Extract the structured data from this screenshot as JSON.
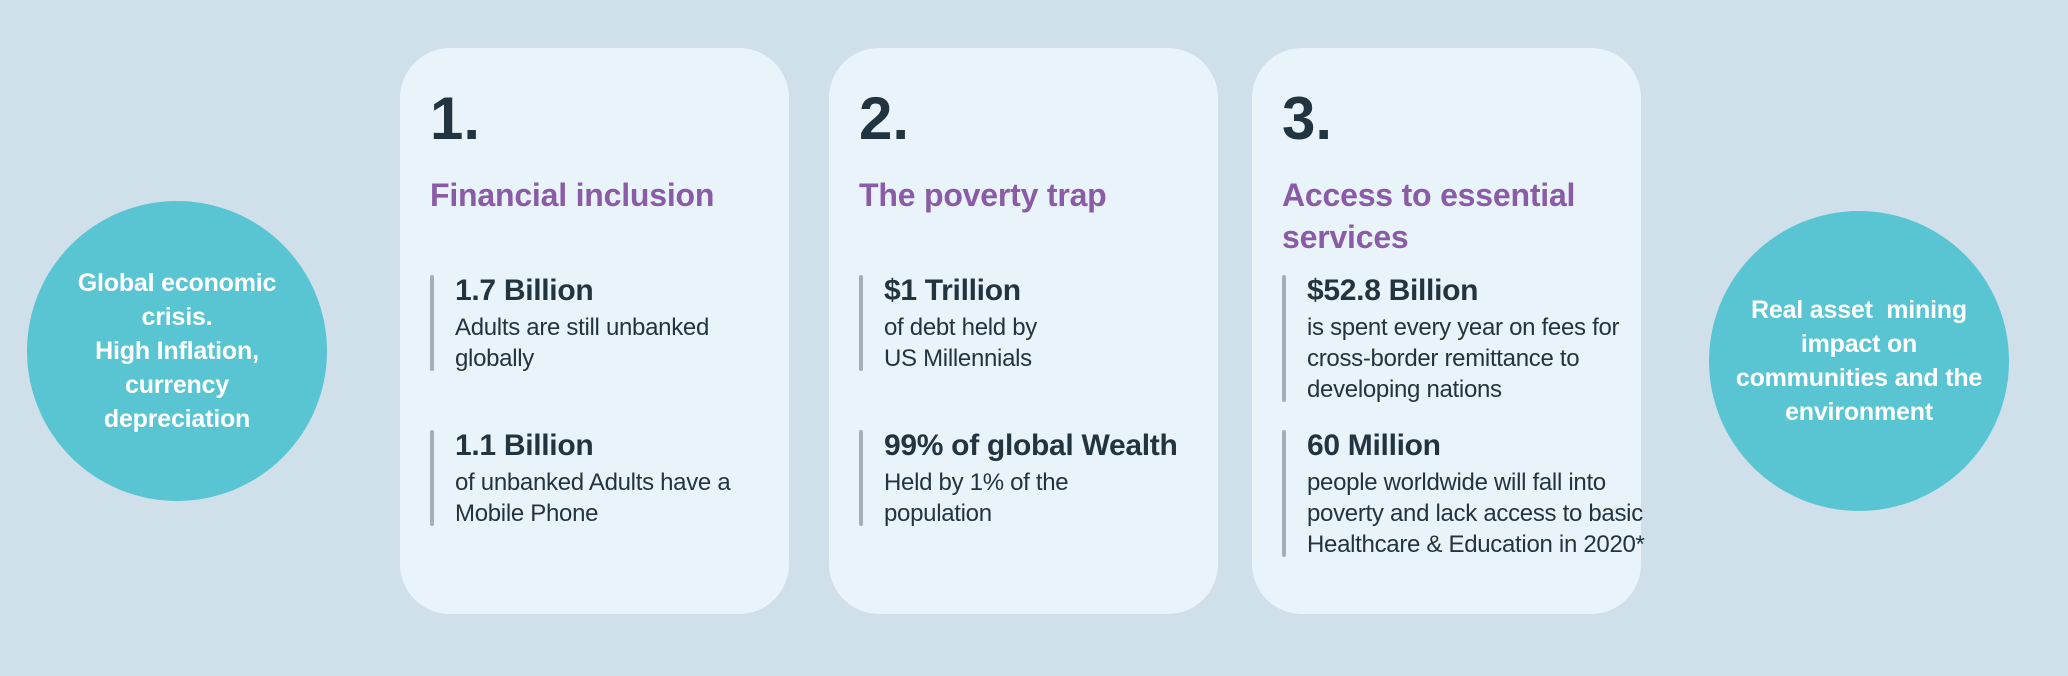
{
  "colors": {
    "background": "#cfe0eb",
    "card_bg": "#e9f3fa",
    "teal": "#59c4d2",
    "purple": "#8a5ba6",
    "dark": "#233441",
    "bar": "#a5aeb6",
    "white": "#ffffff"
  },
  "left_circle": {
    "text": "Global economic\ncrisis.\nHigh Inflation,\ncurrency\ndepreciation"
  },
  "right_circle": {
    "text": "Real asset  mining\nimpact on\ncommunities and the\nenvironment"
  },
  "cards": [
    {
      "number": "1.",
      "title": "Financial inclusion",
      "stats": [
        {
          "value": "1.7 Billion",
          "description": "Adults are still unbanked\nglobally"
        },
        {
          "value": "1.1 Billion",
          "description": "of unbanked Adults have a\nMobile Phone"
        }
      ]
    },
    {
      "number": "2.",
      "title": "The poverty trap",
      "stats": [
        {
          "value": "$1 Trillion",
          "description": "of debt held by\nUS Millennials"
        },
        {
          "value": "99% of global Wealth",
          "description": "Held by 1% of the\npopulation"
        }
      ]
    },
    {
      "number": "3.",
      "title": "Access to essential\nservices",
      "stats": [
        {
          "value": "$52.8 Billion",
          "description": "is spent every year on fees for\ncross-border remittance to\ndeveloping nations"
        },
        {
          "value": "60 Million",
          "description": "people worldwide will fall into\npoverty and lack access to basic\nHealthcare & Education in 2020*"
        }
      ]
    }
  ]
}
